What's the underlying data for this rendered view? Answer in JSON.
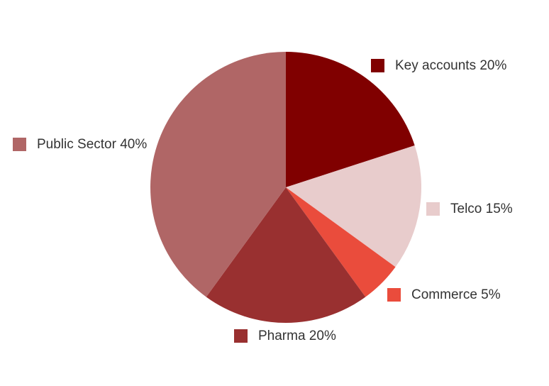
{
  "chart_data": {
    "type": "pie",
    "start_angle_deg": 0,
    "direction": "clockwise",
    "slices": [
      {
        "label": "Key accounts 20%",
        "value": 20,
        "color": "#800000"
      },
      {
        "label": "Telco 15%",
        "value": 15,
        "color": "#e8cccc"
      },
      {
        "label": "Commerce 5%",
        "value": 5,
        "color": "#ea4c3c"
      },
      {
        "label": "Pharma 20%",
        "value": 20,
        "color": "#993030"
      },
      {
        "label": "Public Sector 40%",
        "value": 40,
        "color": "#b06666"
      }
    ]
  }
}
